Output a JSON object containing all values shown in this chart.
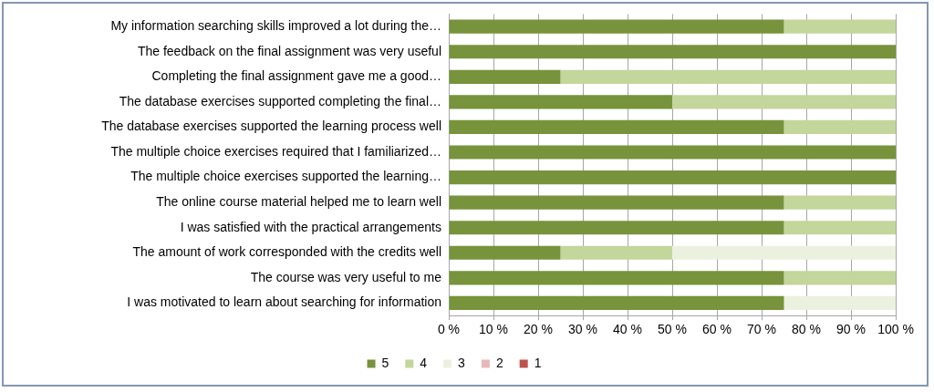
{
  "chart_data": {
    "type": "bar",
    "orientation": "horizontal",
    "stacked": true,
    "categories": [
      "My information searching skills improved a lot during the…",
      "The feedback on the final assignment was very useful",
      "Completing the final assignment gave me a good…",
      "The database exercises supported completing the final…",
      "The database exercises supported the learning process well",
      "The multiple choice exercises required that I familiarized…",
      "The multiple choice exercises supported the learning…",
      "The online course material helped me to learn well",
      "I was satisfied with the practical arrangements",
      "The amount of work corresponded with the credits well",
      "The course was very useful to me",
      "I was motivated to learn about searching for information"
    ],
    "series": [
      {
        "name": "5",
        "color": "#77933c",
        "values": [
          75,
          100,
          25,
          50,
          75,
          100,
          100,
          75,
          75,
          25,
          75,
          75
        ]
      },
      {
        "name": "4",
        "color": "#c3d69b",
        "values": [
          25,
          0,
          75,
          50,
          25,
          0,
          0,
          25,
          25,
          25,
          25,
          0
        ]
      },
      {
        "name": "3",
        "color": "#ebf1de",
        "values": [
          0,
          0,
          0,
          0,
          0,
          0,
          0,
          0,
          0,
          50,
          0,
          25
        ]
      },
      {
        "name": "2",
        "color": "#e6b9b8",
        "values": [
          0,
          0,
          0,
          0,
          0,
          0,
          0,
          0,
          0,
          0,
          0,
          0
        ]
      },
      {
        "name": "1",
        "color": "#c0504d",
        "values": [
          0,
          0,
          0,
          0,
          0,
          0,
          0,
          0,
          0,
          0,
          0,
          0
        ]
      }
    ],
    "xlim": [
      0,
      100
    ],
    "xticks": [
      {
        "value": 0,
        "label": "0 %"
      },
      {
        "value": 10,
        "label": "10 %"
      },
      {
        "value": 20,
        "label": "20 %"
      },
      {
        "value": 30,
        "label": "30 %"
      },
      {
        "value": 40,
        "label": "40 %"
      },
      {
        "value": 50,
        "label": "50 %"
      },
      {
        "value": 60,
        "label": "60 %"
      },
      {
        "value": 70,
        "label": "70 %"
      },
      {
        "value": 80,
        "label": "80 %"
      },
      {
        "value": 90,
        "label": "90 %"
      },
      {
        "value": 100,
        "label": "100 %"
      }
    ],
    "grid": "x",
    "legend": "bottom"
  }
}
